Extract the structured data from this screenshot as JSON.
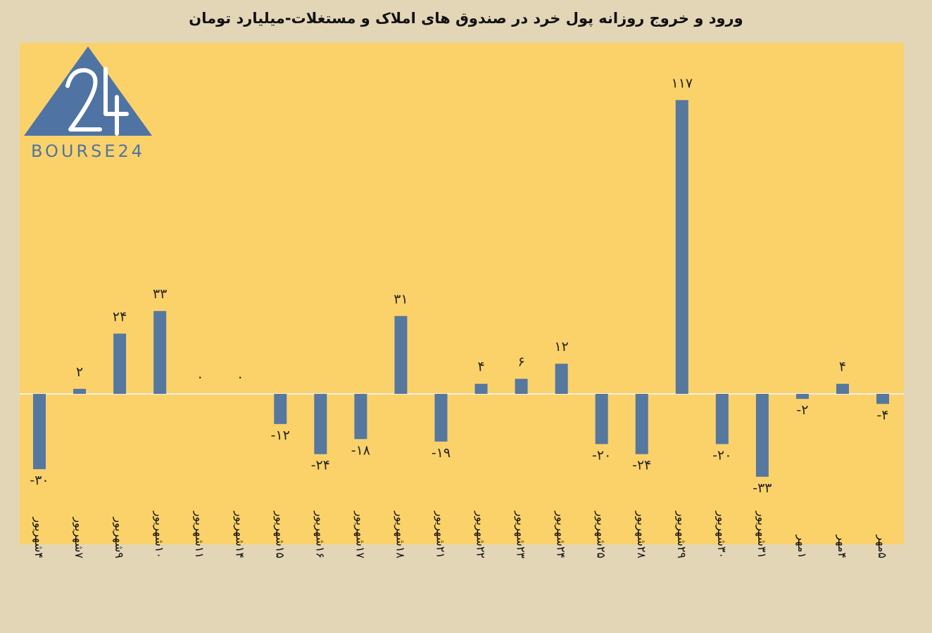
{
  "title": "ورود و خروج روزانه پول خرد در صندوق های املاک و مستغلات-میلیارد تومان",
  "logo": {
    "text": "BOURSE24",
    "mark": "24"
  },
  "colors": {
    "bar": "#56779e",
    "plot_bg": "#fbd26a",
    "page_bg": "#e3d6b7",
    "zero_line": "#f3f0e6",
    "logo": "#4f74a3"
  },
  "chart_data": {
    "type": "bar",
    "title": "ورود و خروج روزانه پول خرد در صندوق های املاک و مستغلات-میلیارد تومان",
    "xlabel": "",
    "ylabel": "",
    "categories": [
      "۴شهریور",
      "۷شهریور",
      "۹شهریور",
      "۱۰شهریور",
      "۱۱شهریور",
      "۱۴شهریور",
      "۱۵شهریور",
      "۱۶شهریور",
      "۱۷شهریور",
      "۱۸شهریور",
      "۲۱شهریور",
      "۲۲شهریور",
      "۲۳شهریور",
      "۲۴شهریور",
      "۲۵شهریور",
      "۲۸شهریور",
      "۲۹شهریور",
      "۳۰شهریور",
      "۳۱شهریور",
      "۱مهر",
      "۴مهر",
      "۵مهر"
    ],
    "values": [
      -30,
      2,
      24,
      33,
      0,
      0,
      -12,
      -24,
      -18,
      31,
      -19,
      4,
      6,
      12,
      -20,
      -24,
      117,
      -20,
      -33,
      -2,
      4,
      -4
    ],
    "value_labels": [
      "-۳۰",
      "۲",
      "۲۴",
      "۳۳",
      "۰",
      "۰",
      "-۱۲",
      "-۲۴",
      "-۱۸",
      "۳۱",
      "-۱۹",
      "۴",
      "۶",
      "۱۲",
      "-۲۰",
      "-۲۴",
      "۱۱۷",
      "-۲۰",
      "-۳۳",
      "-۲",
      "۴",
      "-۴"
    ],
    "ylim": [
      -60,
      140
    ],
    "grid": false,
    "legend": "none"
  }
}
